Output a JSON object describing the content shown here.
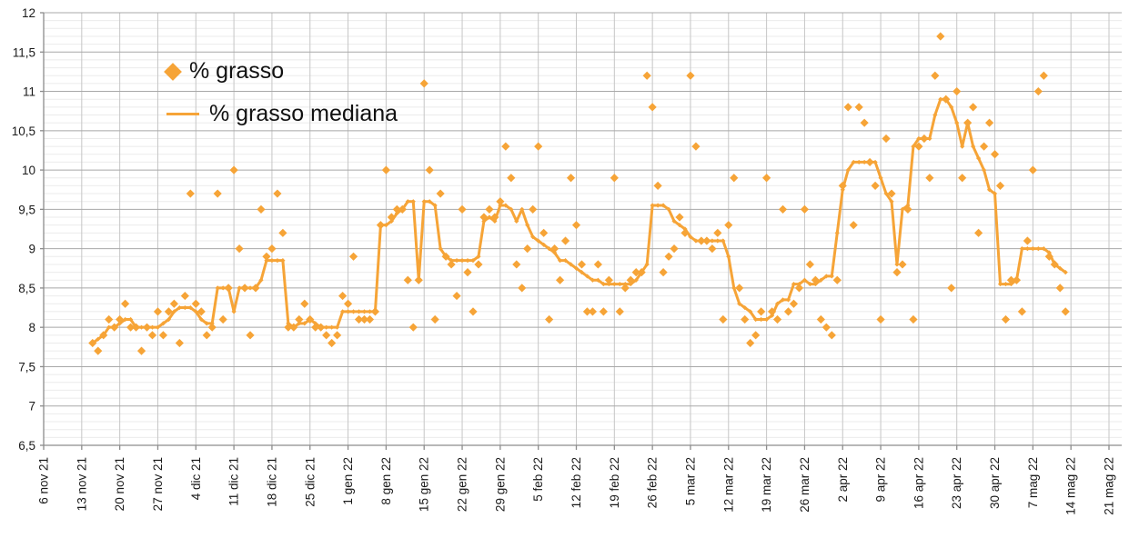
{
  "chart_data": {
    "type": "scatter",
    "title": "",
    "xlabel": "",
    "ylabel": "",
    "x_axis": {
      "tick_labels": [
        "6 nov 21",
        "13 nov 21",
        "20 nov 21",
        "27 nov 21",
        "4 dic 21",
        "11 dic 21",
        "18 dic 21",
        "25 dic 21",
        "1 gen 22",
        "8 gen 22",
        "15 gen 22",
        "22 gen 22",
        "29 gen 22",
        "5 feb 22",
        "12 feb 22",
        "19 feb 22",
        "26 feb 22",
        "5 mar 22",
        "12 mar 22",
        "19 mar 22",
        "26 mar 22",
        "2 apr 22",
        "9 apr 22",
        "16 apr 22",
        "23 apr 22",
        "30 apr 22",
        "7 mag 22",
        "14 mag 22",
        "21 mag 22"
      ],
      "days_per_tick": 7
    },
    "y_axis": {
      "min": 6.5,
      "max": 12,
      "major_step": 0.5,
      "minor_step": 0.1,
      "tick_labels": [
        "12",
        "11,5",
        "11",
        "10,5",
        "10",
        "9,5",
        "9",
        "8,5",
        "8",
        "7,5",
        "7",
        "6,5"
      ]
    },
    "legend": {
      "position": "top-left-inside"
    },
    "series": [
      {
        "name": "% grasso",
        "type": "scatter",
        "marker": "diamond",
        "color": "#F6A437",
        "start_day": 9,
        "values": [
          7.8,
          7.7,
          7.9,
          8.1,
          8.0,
          8.1,
          8.3,
          8.0,
          8.0,
          7.7,
          8.0,
          7.9,
          8.2,
          7.9,
          8.2,
          8.3,
          7.8,
          8.4,
          9.7,
          8.3,
          8.2,
          7.9,
          8.0,
          9.7,
          8.1,
          8.5,
          10.0,
          9.0,
          8.5,
          7.9,
          8.5,
          9.5,
          8.9,
          9.0,
          9.7,
          9.2,
          8.0,
          8.0,
          8.1,
          8.3,
          8.1,
          8.0,
          8.0,
          7.9,
          7.8,
          7.9,
          8.4,
          8.3,
          8.9,
          8.1,
          8.1,
          8.1,
          8.2,
          9.3,
          10.0,
          9.4,
          9.5,
          9.5,
          8.6,
          8.0,
          8.6,
          11.1,
          10.0,
          8.1,
          9.7,
          8.9,
          8.8,
          8.4,
          9.5,
          8.7,
          8.2,
          8.8,
          9.4,
          9.5,
          9.4,
          9.6,
          10.3,
          9.9,
          8.8,
          8.5,
          9.0,
          9.5,
          10.3,
          9.2,
          8.1,
          9.0,
          8.6,
          9.1,
          9.9,
          9.3,
          8.8,
          8.2,
          8.2,
          8.8,
          8.2,
          8.6,
          9.9,
          8.2,
          8.5,
          8.6,
          8.7,
          8.7,
          11.2,
          10.8,
          9.8,
          8.7,
          8.9,
          9.0,
          9.4,
          9.2,
          11.2,
          10.3,
          9.1,
          9.1,
          9.0,
          9.2,
          8.1,
          9.3,
          9.9,
          8.5,
          8.1,
          7.8,
          7.9,
          8.2,
          9.9,
          8.2,
          8.1,
          9.5,
          8.2,
          8.3,
          8.5,
          9.5,
          8.8,
          8.6,
          8.1,
          8.0,
          7.9,
          8.6,
          9.8,
          10.8,
          9.3,
          10.8,
          10.6,
          10.1,
          9.8,
          8.1,
          10.4,
          9.7,
          8.7,
          8.8,
          9.5,
          8.1,
          10.3,
          10.4,
          9.9,
          11.2,
          11.7,
          10.9,
          8.5,
          11.0,
          9.9,
          10.6,
          10.8,
          9.2,
          10.3,
          10.6,
          10.2,
          9.8,
          8.1,
          8.6,
          8.6,
          8.2,
          9.1,
          10.0,
          11.0,
          11.2,
          8.9,
          8.8,
          8.5,
          8.2
        ]
      },
      {
        "name": "% grasso mediana",
        "type": "line",
        "color": "#F6A437",
        "start_day": 9,
        "values": [
          7.8,
          7.85,
          7.9,
          8.0,
          8.0,
          8.05,
          8.1,
          8.1,
          8.0,
          8.0,
          8.0,
          8.0,
          8.0,
          8.05,
          8.1,
          8.2,
          8.25,
          8.25,
          8.25,
          8.2,
          8.1,
          8.05,
          8.05,
          8.5,
          8.5,
          8.5,
          8.2,
          8.5,
          8.5,
          8.5,
          8.5,
          8.6,
          8.85,
          8.85,
          8.85,
          8.85,
          8.05,
          8.0,
          8.05,
          8.05,
          8.1,
          8.05,
          8.0,
          8.0,
          8.0,
          8.0,
          8.2,
          8.2,
          8.2,
          8.2,
          8.2,
          8.2,
          8.2,
          9.3,
          9.3,
          9.35,
          9.45,
          9.5,
          9.6,
          9.6,
          8.6,
          9.6,
          9.6,
          9.55,
          9.0,
          8.9,
          8.85,
          8.85,
          8.85,
          8.85,
          8.85,
          8.9,
          9.35,
          9.4,
          9.35,
          9.55,
          9.55,
          9.5,
          9.35,
          9.5,
          9.3,
          9.15,
          9.1,
          9.05,
          9.0,
          8.95,
          8.85,
          8.85,
          8.8,
          8.75,
          8.7,
          8.65,
          8.6,
          8.6,
          8.55,
          8.55,
          8.55,
          8.55,
          8.55,
          8.55,
          8.6,
          8.7,
          8.8,
          9.55,
          9.55,
          9.55,
          9.5,
          9.35,
          9.3,
          9.25,
          9.15,
          9.1,
          9.1,
          9.1,
          9.1,
          9.1,
          9.1,
          8.9,
          8.5,
          8.3,
          8.25,
          8.2,
          8.1,
          8.1,
          8.1,
          8.15,
          8.3,
          8.35,
          8.35,
          8.55,
          8.55,
          8.6,
          8.55,
          8.55,
          8.6,
          8.65,
          8.65,
          9.2,
          9.75,
          10.0,
          10.1,
          10.1,
          10.1,
          10.1,
          10.1,
          9.9,
          9.7,
          9.6,
          8.8,
          9.5,
          9.55,
          10.3,
          10.4,
          10.4,
          10.4,
          10.7,
          10.9,
          10.9,
          10.8,
          10.6,
          10.3,
          10.6,
          10.3,
          10.15,
          10.0,
          9.75,
          9.7,
          8.55,
          8.55,
          8.55,
          8.6,
          9.0,
          9.0,
          9.0,
          9.0,
          9.0,
          8.95,
          8.8,
          8.75,
          8.7
        ]
      }
    ]
  },
  "colors": {
    "accent": "#F6A437",
    "grid_minor": "#ebebeb",
    "grid_major": "#a8a8a8",
    "grid_vertical": "#c6c6c6",
    "axis": "#8c8c8c",
    "text": "#1a1a1a",
    "background": "#ffffff"
  },
  "legend": {
    "item1": "% grasso",
    "item2": "% grasso mediana"
  }
}
